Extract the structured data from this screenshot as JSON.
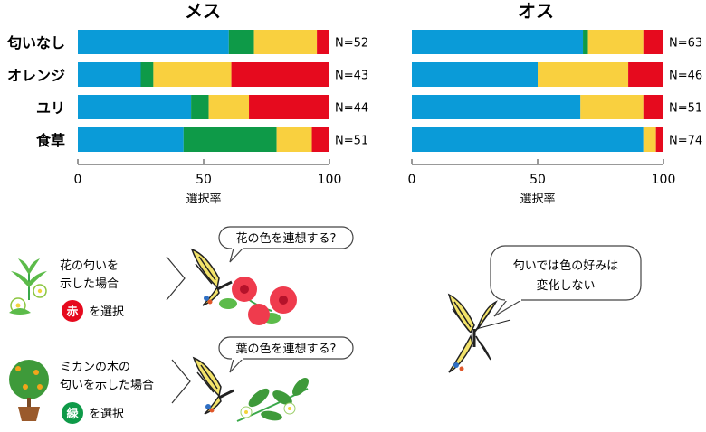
{
  "chart_data": [
    {
      "type": "bar",
      "stacked": true,
      "orientation": "horizontal",
      "title": "メス",
      "categories": [
        "匂いなし",
        "オレンジ",
        "ユリ",
        "食草"
      ],
      "series": [
        {
          "color": "#0a9bd8",
          "values": [
            60,
            25,
            45,
            42
          ]
        },
        {
          "color": "#0e9a48",
          "values": [
            10,
            5,
            7,
            37
          ]
        },
        {
          "color": "#f9d03f",
          "values": [
            25,
            31,
            16,
            14
          ]
        },
        {
          "color": "#e60a1e",
          "values": [
            5,
            39,
            32,
            7
          ]
        }
      ],
      "n_labels": [
        "N=52",
        "N=43",
        "N=44",
        "N=51"
      ],
      "xlim": [
        0,
        100
      ],
      "xticks": [
        "0",
        "50",
        "100"
      ],
      "xlabel": "選択率"
    },
    {
      "type": "bar",
      "stacked": true,
      "orientation": "horizontal",
      "title": "オス",
      "categories": [
        "匂いなし",
        "オレンジ",
        "ユリ",
        "食草"
      ],
      "series": [
        {
          "color": "#0a9bd8",
          "values": [
            68,
            50,
            67,
            92
          ]
        },
        {
          "color": "#0e9a48",
          "values": [
            2,
            0,
            0,
            0
          ]
        },
        {
          "color": "#f9d03f",
          "values": [
            22,
            36,
            25,
            5
          ]
        },
        {
          "color": "#e60a1e",
          "values": [
            8,
            14,
            8,
            3
          ]
        }
      ],
      "n_labels": [
        "N=63",
        "N=46",
        "N=51",
        "N=74"
      ],
      "xlim": [
        0,
        100
      ],
      "xticks": [
        "0",
        "50",
        "100"
      ],
      "xlabel": "選択率"
    }
  ],
  "illustration": {
    "flower_caption_1": "花の匂いを",
    "flower_caption_2": "示した場合",
    "flower_badge": "赤",
    "flower_select": "を選択",
    "flower_bubble": "花の色を連想する?",
    "citrus_caption_1": "ミカンの木の",
    "citrus_caption_2": "匂いを示した場合",
    "citrus_badge": "緑",
    "citrus_select": "を選択",
    "citrus_bubble": "葉の色を連想する?",
    "male_bubble_1": "匂いでは色の好みは",
    "male_bubble_2": "変化しない",
    "red_badge_color": "#e60a1e",
    "green_badge_color": "#0e9a48"
  }
}
